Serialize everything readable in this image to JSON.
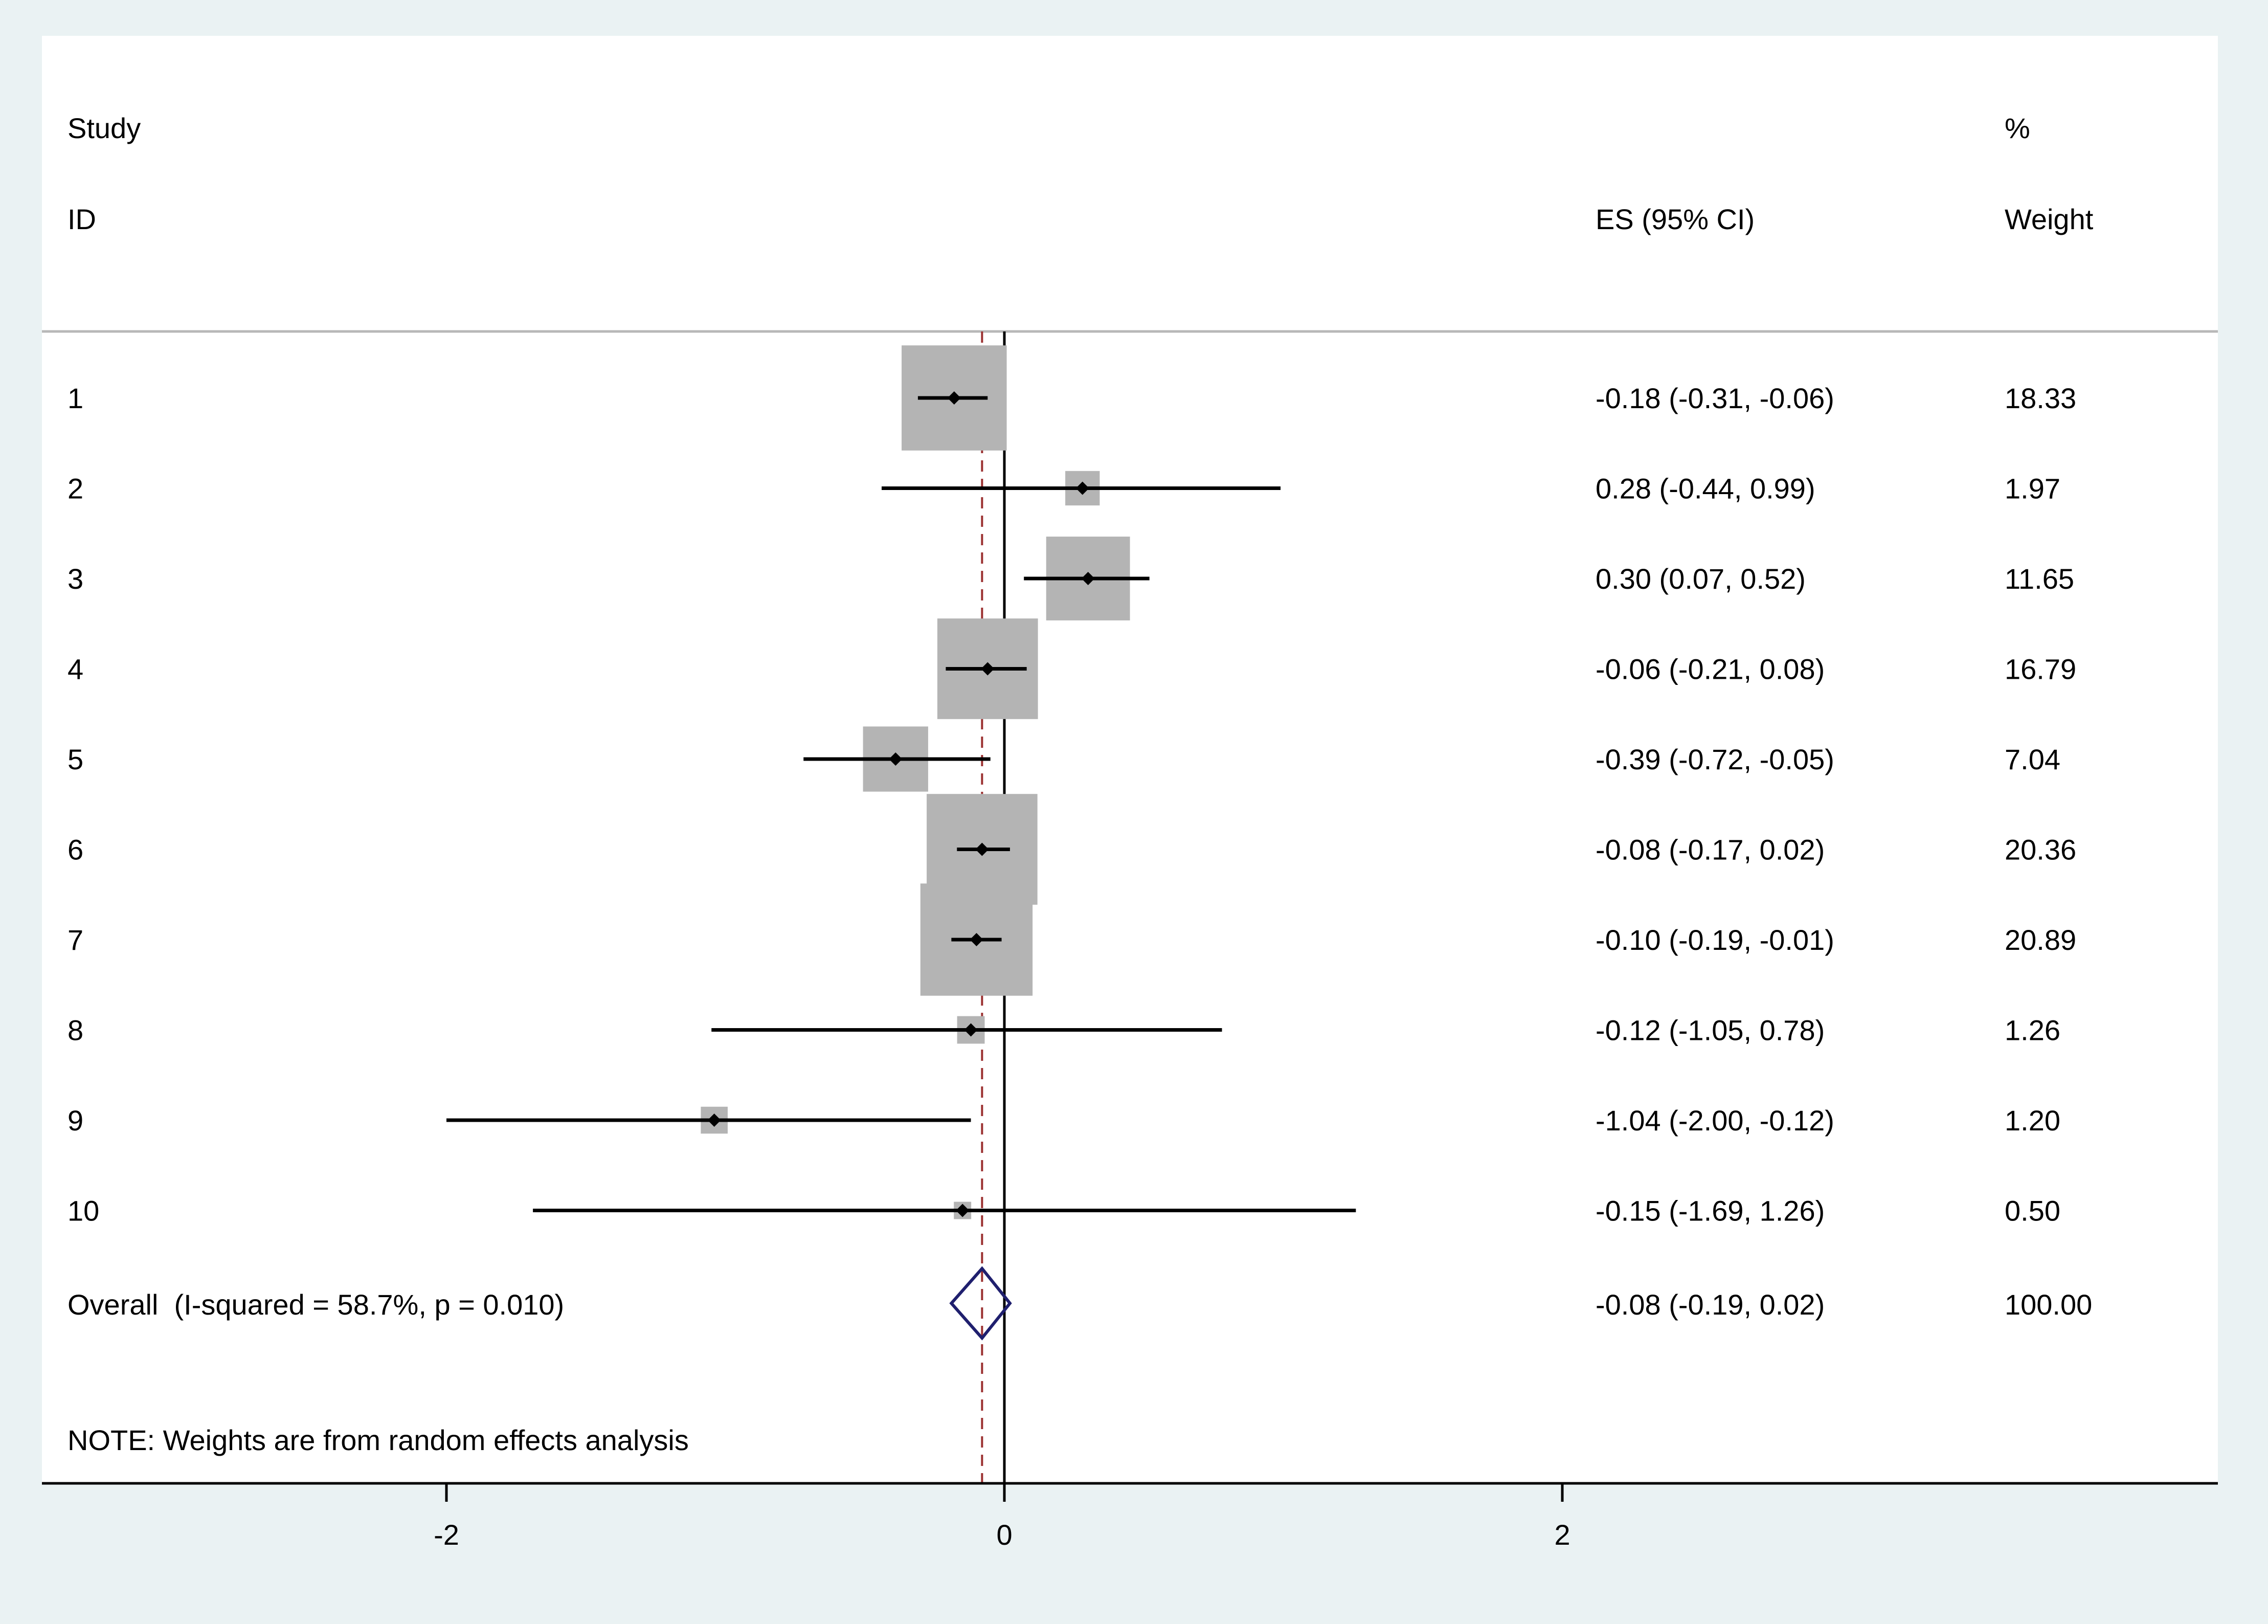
{
  "chart_data": {
    "type": "forest",
    "headers": {
      "study_line1": "Study",
      "study_line2": "ID",
      "es": "ES (95% CI)",
      "weight_line1": "%",
      "weight_line2": "Weight"
    },
    "studies": [
      {
        "id": "1",
        "es": -0.18,
        "lo": -0.31,
        "hi": -0.06,
        "weight": 18.33,
        "es_text": "-0.18 (-0.31, -0.06)",
        "weight_text": "18.33"
      },
      {
        "id": "2",
        "es": 0.28,
        "lo": -0.44,
        "hi": 0.99,
        "weight": 1.97,
        "es_text": "0.28 (-0.44, 0.99)",
        "weight_text": "1.97"
      },
      {
        "id": "3",
        "es": 0.3,
        "lo": 0.07,
        "hi": 0.52,
        "weight": 11.65,
        "es_text": "0.30 (0.07, 0.52)",
        "weight_text": "11.65"
      },
      {
        "id": "4",
        "es": -0.06,
        "lo": -0.21,
        "hi": 0.08,
        "weight": 16.79,
        "es_text": "-0.06 (-0.21, 0.08)",
        "weight_text": "16.79"
      },
      {
        "id": "5",
        "es": -0.39,
        "lo": -0.72,
        "hi": -0.05,
        "weight": 7.04,
        "es_text": "-0.39 (-0.72, -0.05)",
        "weight_text": "7.04"
      },
      {
        "id": "6",
        "es": -0.08,
        "lo": -0.17,
        "hi": 0.02,
        "weight": 20.36,
        "es_text": "-0.08 (-0.17, 0.02)",
        "weight_text": "20.36"
      },
      {
        "id": "7",
        "es": -0.1,
        "lo": -0.19,
        "hi": -0.01,
        "weight": 20.89,
        "es_text": "-0.10 (-0.19, -0.01)",
        "weight_text": "20.89"
      },
      {
        "id": "8",
        "es": -0.12,
        "lo": -1.05,
        "hi": 0.78,
        "weight": 1.26,
        "es_text": "-0.12 (-1.05, 0.78)",
        "weight_text": "1.26"
      },
      {
        "id": "9",
        "es": -1.04,
        "lo": -2.0,
        "hi": -0.12,
        "weight": 1.2,
        "es_text": "-1.04 (-2.00, -0.12)",
        "weight_text": "1.20"
      },
      {
        "id": "10",
        "es": -0.15,
        "lo": -1.69,
        "hi": 1.26,
        "weight": 0.5,
        "es_text": "-0.15 (-1.69, 1.26)",
        "weight_text": "0.50"
      }
    ],
    "overall": {
      "label": "Overall  (I-squared = 58.7%, p = 0.010)",
      "es": -0.08,
      "lo": -0.19,
      "hi": 0.02,
      "es_text": "-0.08 (-0.19, 0.02)",
      "weight_text": "100.00"
    },
    "note": "NOTE: Weights are from random effects analysis",
    "x_ticks": [
      -2,
      0,
      2
    ],
    "x_tick_labels": [
      "-2",
      "0",
      "2"
    ],
    "xlim": [
      -3.45,
      4.35
    ],
    "colors": {
      "background": "#eaf2f3",
      "box": "#b4b4b4",
      "diamond": "#1f1f6e",
      "overall_line": "#9b3030",
      "ci_line": "#000000"
    }
  }
}
